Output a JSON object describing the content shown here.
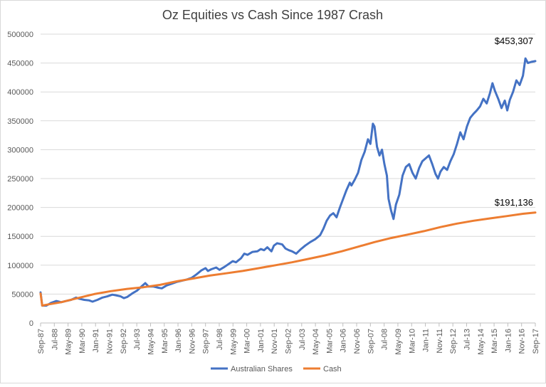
{
  "chart_data": {
    "type": "line",
    "title": "Oz Equities vs Cash Since 1987 Crash",
    "xlabel": "",
    "ylabel": "",
    "ylim": [
      0,
      500000
    ],
    "y_ticks": [
      "0",
      "50000",
      "100000",
      "150000",
      "200000",
      "250000",
      "300000",
      "350000",
      "400000",
      "450000",
      "500000"
    ],
    "grid": true,
    "legend_position": "bottom",
    "x_start_year": 1987.75,
    "x_end_year": 2017.75,
    "x_tick_labels": [
      "Sep-87",
      "Jul-88",
      "May-89",
      "Mar-90",
      "Jan-91",
      "Nov-91",
      "Sep-92",
      "Jul-93",
      "May-94",
      "Mar-95",
      "Jan-96",
      "Nov-96",
      "Sep-97",
      "Jul-98",
      "May-99",
      "Mar-00",
      "Jan-01",
      "Nov-01",
      "Sep-02",
      "Jul-03",
      "May-04",
      "Mar-05",
      "Jan-06",
      "Nov-06",
      "Sep-07",
      "Jul-08",
      "May-09",
      "Mar-10",
      "Jan-11",
      "Nov-11",
      "Sep-12",
      "Jul-13",
      "May-14",
      "Mar-15",
      "Jan-16",
      "Nov-16",
      "Sep-17"
    ],
    "series": [
      {
        "name": "Australian Shares",
        "color": "#4472c4",
        "points": [
          [
            1987.75,
            53000
          ],
          [
            1987.85,
            30000
          ],
          [
            1988.1,
            30000
          ],
          [
            1988.4,
            35000
          ],
          [
            1988.7,
            38000
          ],
          [
            1989.0,
            36000
          ],
          [
            1989.3,
            38000
          ],
          [
            1989.6,
            40000
          ],
          [
            1989.9,
            44000
          ],
          [
            1990.1,
            42000
          ],
          [
            1990.4,
            40000
          ],
          [
            1990.7,
            39000
          ],
          [
            1990.9,
            37000
          ],
          [
            1991.2,
            40000
          ],
          [
            1991.5,
            44000
          ],
          [
            1991.8,
            46000
          ],
          [
            1992.1,
            49000
          ],
          [
            1992.3,
            48000
          ],
          [
            1992.6,
            46000
          ],
          [
            1992.8,
            43000
          ],
          [
            1993.0,
            45000
          ],
          [
            1993.3,
            51000
          ],
          [
            1993.6,
            56000
          ],
          [
            1993.9,
            64000
          ],
          [
            1994.1,
            69000
          ],
          [
            1994.3,
            63000
          ],
          [
            1994.6,
            63000
          ],
          [
            1994.9,
            61000
          ],
          [
            1995.1,
            60000
          ],
          [
            1995.4,
            65000
          ],
          [
            1995.7,
            68000
          ],
          [
            1996.0,
            71000
          ],
          [
            1996.3,
            73000
          ],
          [
            1996.6,
            75000
          ],
          [
            1996.9,
            78000
          ],
          [
            1997.2,
            84000
          ],
          [
            1997.5,
            91000
          ],
          [
            1997.75,
            95000
          ],
          [
            1997.9,
            90000
          ],
          [
            1998.1,
            93000
          ],
          [
            1998.4,
            96000
          ],
          [
            1998.6,
            92000
          ],
          [
            1998.9,
            97000
          ],
          [
            1999.2,
            103000
          ],
          [
            1999.4,
            107000
          ],
          [
            1999.6,
            105000
          ],
          [
            1999.9,
            112000
          ],
          [
            2000.1,
            120000
          ],
          [
            2000.3,
            118000
          ],
          [
            2000.6,
            123000
          ],
          [
            2000.9,
            124000
          ],
          [
            2001.1,
            128000
          ],
          [
            2001.3,
            126000
          ],
          [
            2001.5,
            131000
          ],
          [
            2001.75,
            124000
          ],
          [
            2001.9,
            134000
          ],
          [
            2002.1,
            138000
          ],
          [
            2002.4,
            136000
          ],
          [
            2002.6,
            129000
          ],
          [
            2002.8,
            126000
          ],
          [
            2003.0,
            124000
          ],
          [
            2003.25,
            120000
          ],
          [
            2003.5,
            127000
          ],
          [
            2003.8,
            134000
          ],
          [
            2004.1,
            140000
          ],
          [
            2004.4,
            145000
          ],
          [
            2004.7,
            152000
          ],
          [
            2004.9,
            163000
          ],
          [
            2005.1,
            177000
          ],
          [
            2005.3,
            186000
          ],
          [
            2005.5,
            190000
          ],
          [
            2005.7,
            183000
          ],
          [
            2005.9,
            200000
          ],
          [
            2006.1,
            215000
          ],
          [
            2006.3,
            230000
          ],
          [
            2006.5,
            243000
          ],
          [
            2006.6,
            238000
          ],
          [
            2006.8,
            248000
          ],
          [
            2007.0,
            260000
          ],
          [
            2007.2,
            282000
          ],
          [
            2007.4,
            296000
          ],
          [
            2007.6,
            318000
          ],
          [
            2007.75,
            310000
          ],
          [
            2007.9,
            345000
          ],
          [
            2008.0,
            340000
          ],
          [
            2008.15,
            305000
          ],
          [
            2008.3,
            290000
          ],
          [
            2008.45,
            300000
          ],
          [
            2008.6,
            275000
          ],
          [
            2008.75,
            255000
          ],
          [
            2008.85,
            215000
          ],
          [
            2009.0,
            195000
          ],
          [
            2009.15,
            180000
          ],
          [
            2009.3,
            205000
          ],
          [
            2009.5,
            222000
          ],
          [
            2009.7,
            255000
          ],
          [
            2009.9,
            270000
          ],
          [
            2010.1,
            275000
          ],
          [
            2010.3,
            260000
          ],
          [
            2010.5,
            250000
          ],
          [
            2010.7,
            268000
          ],
          [
            2010.9,
            280000
          ],
          [
            2011.1,
            285000
          ],
          [
            2011.3,
            290000
          ],
          [
            2011.5,
            275000
          ],
          [
            2011.7,
            258000
          ],
          [
            2011.85,
            250000
          ],
          [
            2012.0,
            262000
          ],
          [
            2012.2,
            270000
          ],
          [
            2012.4,
            265000
          ],
          [
            2012.6,
            280000
          ],
          [
            2012.8,
            292000
          ],
          [
            2013.0,
            310000
          ],
          [
            2013.2,
            330000
          ],
          [
            2013.4,
            318000
          ],
          [
            2013.6,
            340000
          ],
          [
            2013.8,
            355000
          ],
          [
            2014.0,
            362000
          ],
          [
            2014.2,
            368000
          ],
          [
            2014.4,
            375000
          ],
          [
            2014.6,
            388000
          ],
          [
            2014.8,
            380000
          ],
          [
            2015.0,
            398000
          ],
          [
            2015.15,
            415000
          ],
          [
            2015.3,
            402000
          ],
          [
            2015.5,
            388000
          ],
          [
            2015.7,
            372000
          ],
          [
            2015.9,
            385000
          ],
          [
            2016.05,
            368000
          ],
          [
            2016.2,
            386000
          ],
          [
            2016.4,
            400000
          ],
          [
            2016.6,
            420000
          ],
          [
            2016.8,
            412000
          ],
          [
            2017.0,
            428000
          ],
          [
            2017.15,
            458000
          ],
          [
            2017.3,
            450000
          ],
          [
            2017.5,
            452000
          ],
          [
            2017.75,
            453307
          ]
        ]
      },
      {
        "name": "Cash",
        "color": "#ed7d31",
        "points": [
          [
            1987.75,
            51000
          ],
          [
            1987.85,
            30000
          ],
          [
            1988.0,
            31000
          ],
          [
            1989.0,
            36000
          ],
          [
            1990.0,
            43000
          ],
          [
            1991.0,
            50000
          ],
          [
            1992.0,
            55000
          ],
          [
            1993.0,
            59000
          ],
          [
            1994.0,
            62000
          ],
          [
            1995.0,
            66000
          ],
          [
            1996.0,
            72000
          ],
          [
            1997.0,
            77000
          ],
          [
            1998.0,
            82000
          ],
          [
            1999.0,
            86000
          ],
          [
            2000.0,
            90000
          ],
          [
            2001.0,
            95000
          ],
          [
            2002.0,
            100000
          ],
          [
            2003.0,
            105000
          ],
          [
            2004.0,
            111000
          ],
          [
            2005.0,
            117000
          ],
          [
            2006.0,
            124000
          ],
          [
            2007.0,
            132000
          ],
          [
            2008.0,
            140000
          ],
          [
            2009.0,
            147000
          ],
          [
            2010.0,
            153000
          ],
          [
            2011.0,
            159000
          ],
          [
            2012.0,
            166000
          ],
          [
            2013.0,
            172000
          ],
          [
            2014.0,
            177000
          ],
          [
            2015.0,
            181000
          ],
          [
            2016.0,
            185000
          ],
          [
            2017.0,
            189000
          ],
          [
            2017.75,
            191136
          ]
        ]
      }
    ],
    "annotations": [
      {
        "text": "$453,307",
        "x": 2017.75,
        "y": 453307
      },
      {
        "text": "$191,136",
        "x": 2017.75,
        "y": 191136
      }
    ]
  }
}
